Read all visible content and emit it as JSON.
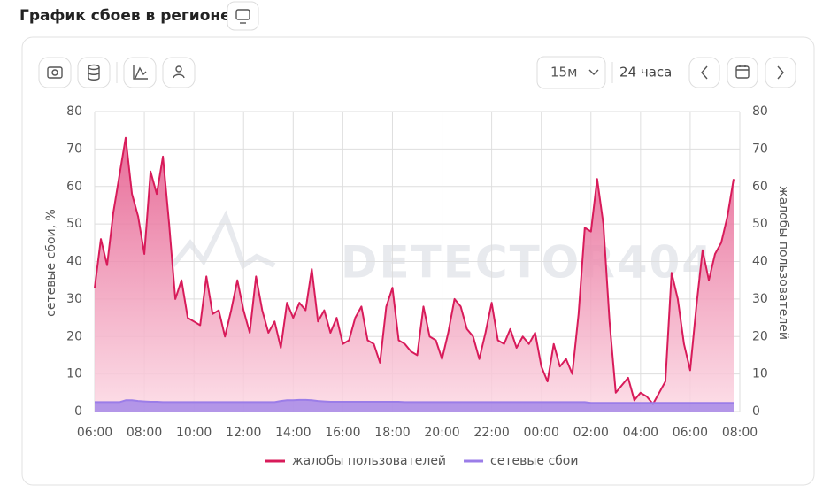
{
  "header": {
    "title": "График сбоев в регионе"
  },
  "toolbar": {
    "interval": "15м",
    "range": "24 часа"
  },
  "chart_data": {
    "type": "area",
    "watermark": "DETECTOR404",
    "ylabel": "сетевые сбои, %",
    "y2label": "жалобы пользователей",
    "xlim": [
      6,
      32
    ],
    "xticks": [
      {
        "value": 6,
        "label": "06:00"
      },
      {
        "value": 8,
        "label": "08:00"
      },
      {
        "value": 10,
        "label": "10:00"
      },
      {
        "value": 12,
        "label": "12:00"
      },
      {
        "value": 14,
        "label": "14:00"
      },
      {
        "value": 16,
        "label": "16:00"
      },
      {
        "value": 18,
        "label": "18:00"
      },
      {
        "value": 20,
        "label": "20:00"
      },
      {
        "value": 22,
        "label": "22:00"
      },
      {
        "value": 24,
        "label": "00:00"
      },
      {
        "value": 26,
        "label": "02:00"
      },
      {
        "value": 28,
        "label": "04:00"
      },
      {
        "value": 30,
        "label": "06:00"
      },
      {
        "value": 32,
        "label": "08:00"
      }
    ],
    "ylim": [
      0,
      80
    ],
    "yticks": [
      0,
      10,
      20,
      30,
      40,
      50,
      60,
      70,
      80
    ],
    "y2lim": [
      0,
      80
    ],
    "y2ticks": [
      0,
      10,
      20,
      30,
      40,
      50,
      60,
      70,
      80
    ],
    "grid": true,
    "legend": "bottom",
    "x": [
      6,
      6.25,
      6.5,
      6.75,
      7,
      7.25,
      7.5,
      7.75,
      8,
      8.25,
      8.5,
      8.75,
      9,
      9.25,
      9.5,
      9.75,
      10,
      10.25,
      10.5,
      10.75,
      11,
      11.25,
      11.5,
      11.75,
      12,
      12.25,
      12.5,
      12.75,
      13,
      13.25,
      13.5,
      13.75,
      14,
      14.25,
      14.5,
      14.75,
      15,
      15.25,
      15.5,
      15.75,
      16,
      16.25,
      16.5,
      16.75,
      17,
      17.25,
      17.5,
      17.75,
      18,
      18.25,
      18.5,
      18.75,
      19,
      19.25,
      19.5,
      19.75,
      20,
      20.25,
      20.5,
      20.75,
      21,
      21.25,
      21.5,
      21.75,
      22,
      22.25,
      22.5,
      22.75,
      23,
      23.25,
      23.5,
      23.75,
      24,
      24.25,
      24.5,
      24.75,
      25,
      25.25,
      25.5,
      25.75,
      26,
      26.25,
      26.5,
      26.75,
      27,
      27.25,
      27.5,
      27.75,
      28,
      28.25,
      28.5,
      28.75,
      29,
      29.25,
      29.5,
      29.75,
      30,
      30.25,
      30.5,
      30.75,
      31,
      31.25,
      31.5,
      31.75
    ],
    "series": [
      {
        "name": "жалобы пользователей",
        "color": "#d81b5a",
        "axis": "y2",
        "values": [
          33,
          46,
          39,
          53,
          63,
          73,
          58,
          52,
          42,
          64,
          58,
          68,
          50,
          30,
          35,
          25,
          24,
          23,
          36,
          26,
          27,
          20,
          27,
          35,
          27,
          21,
          36,
          27,
          21,
          24,
          17,
          29,
          25,
          29,
          27,
          38,
          24,
          27,
          21,
          25,
          18,
          19,
          25,
          28,
          19,
          18,
          13,
          28,
          33,
          19,
          18,
          16,
          15,
          28,
          20,
          19,
          14,
          21,
          30,
          28,
          22,
          20,
          14,
          21,
          29,
          19,
          18,
          22,
          17,
          20,
          18,
          21,
          12,
          8,
          18,
          12,
          14,
          10,
          26,
          49,
          48,
          62,
          50,
          24,
          5,
          7,
          9,
          3,
          5,
          4,
          2,
          5,
          8,
          37,
          30,
          18,
          11,
          28,
          43,
          35,
          42,
          45,
          52,
          62
        ]
      },
      {
        "name": "сетевые сбои",
        "color": "#9b7de8",
        "values": [
          2.5,
          2.5,
          2.5,
          2.5,
          2.5,
          3,
          3,
          2.8,
          2.7,
          2.6,
          2.6,
          2.5,
          2.5,
          2.5,
          2.5,
          2.5,
          2.5,
          2.5,
          2.5,
          2.5,
          2.5,
          2.5,
          2.5,
          2.5,
          2.5,
          2.5,
          2.5,
          2.5,
          2.5,
          2.5,
          2.8,
          3,
          3,
          3.1,
          3.1,
          3,
          2.8,
          2.7,
          2.6,
          2.6,
          2.6,
          2.6,
          2.6,
          2.6,
          2.6,
          2.6,
          2.6,
          2.6,
          2.6,
          2.6,
          2.5,
          2.5,
          2.5,
          2.5,
          2.5,
          2.5,
          2.5,
          2.5,
          2.5,
          2.5,
          2.5,
          2.5,
          2.5,
          2.5,
          2.5,
          2.5,
          2.5,
          2.5,
          2.5,
          2.5,
          2.5,
          2.5,
          2.5,
          2.5,
          2.5,
          2.5,
          2.5,
          2.5,
          2.5,
          2.5,
          2.3,
          2.3,
          2.3,
          2.3,
          2.3,
          2.3,
          2.3,
          2.3,
          2.3,
          2.3,
          2.3,
          2.3,
          2.3,
          2.3,
          2.3,
          2.3,
          2.3,
          2.3,
          2.3,
          2.3,
          2.3,
          2.3,
          2.3,
          2.3
        ]
      }
    ]
  }
}
